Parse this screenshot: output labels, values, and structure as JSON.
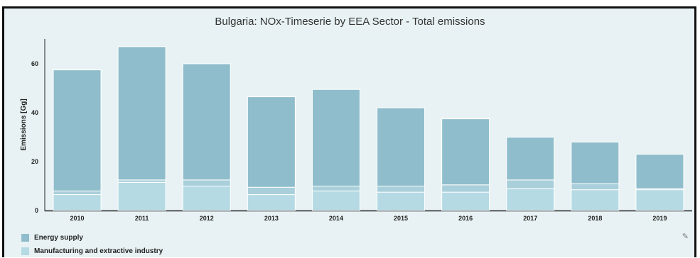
{
  "chart_data": {
    "type": "bar",
    "stacked": true,
    "title": "Bulgaria: NOx-Timeserie by EEA Sector - Total emissions",
    "xlabel": "",
    "ylabel": "Emissions [Gg]",
    "ylim": [
      0,
      70
    ],
    "yticks": [
      "0",
      "20",
      "40",
      "60"
    ],
    "categories": [
      "2010",
      "2011",
      "2012",
      "2013",
      "2014",
      "2015",
      "2016",
      "2017",
      "2018",
      "2019"
    ],
    "series": [
      {
        "name": "Manufacturing and extractive industry",
        "color": "#b5dae4",
        "values": [
          6.5,
          11.5,
          10.0,
          6.5,
          8.0,
          7.5,
          7.5,
          9.0,
          8.5,
          8.5
        ]
      },
      {
        "name": "",
        "color": "#a9cfdb",
        "values": [
          1.5,
          1.0,
          2.5,
          3.0,
          2.0,
          2.5,
          3.0,
          3.5,
          2.5,
          0.5
        ]
      },
      {
        "name": "Energy supply",
        "color": "#8fbdcb",
        "values": [
          49.5,
          54.5,
          47.5,
          37.0,
          39.5,
          32.0,
          27.0,
          17.5,
          17.0,
          14.0
        ]
      }
    ],
    "grid": false,
    "legend_position": "bottom-left"
  },
  "legend": {
    "energy_supply": "Energy supply",
    "manufacturing": "Manufacturing and extractive industry"
  },
  "icons": {
    "edit": "pencil-icon"
  }
}
